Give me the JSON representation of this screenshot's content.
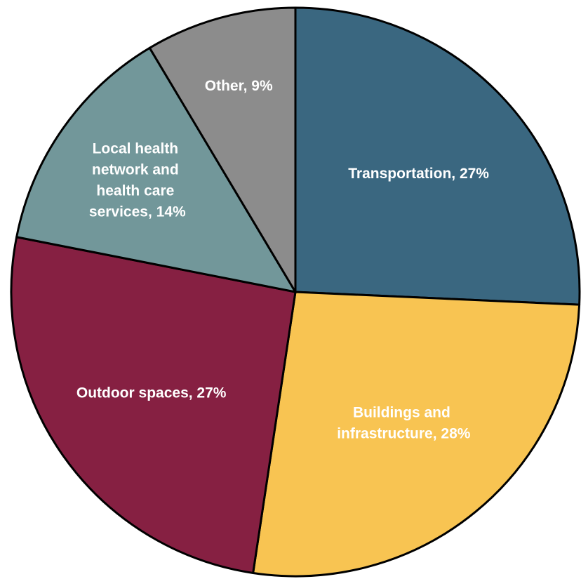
{
  "chart_data": {
    "type": "pie",
    "categories": [
      "Transportation",
      "Buildings and infrastructure",
      "Outdoor spaces",
      "Local health network and health care services",
      "Other"
    ],
    "values": [
      27,
      28,
      27,
      14,
      9
    ],
    "value_labels": [
      "Transportation, 27%",
      "Buildings and infrastructure, 28%",
      "Outdoor spaces, 27%",
      "Local health network and health care services, 14%",
      "Other, 9%"
    ],
    "colors": [
      "#3a6780",
      "#f8c452",
      "#862042",
      "#72979a",
      "#8c8c8c"
    ]
  }
}
